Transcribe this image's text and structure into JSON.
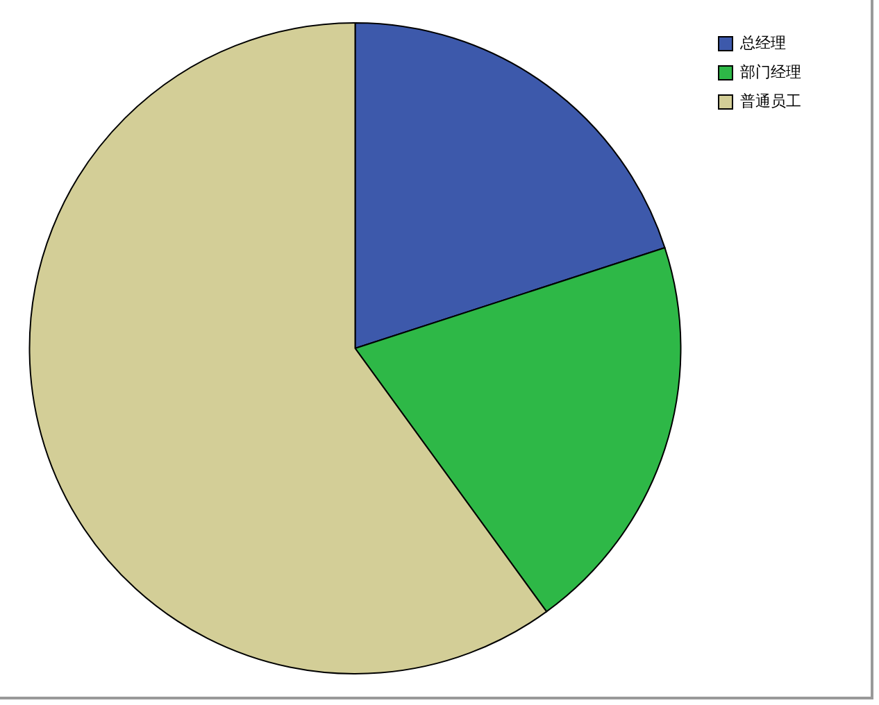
{
  "chart_data": {
    "type": "pie",
    "categories": [
      "总经理",
      "部门经理",
      "普通员工"
    ],
    "values": [
      20,
      20,
      60
    ],
    "colors": [
      "#3d59ab",
      "#2eb847",
      "#d3ce97"
    ],
    "legend": "top right"
  }
}
